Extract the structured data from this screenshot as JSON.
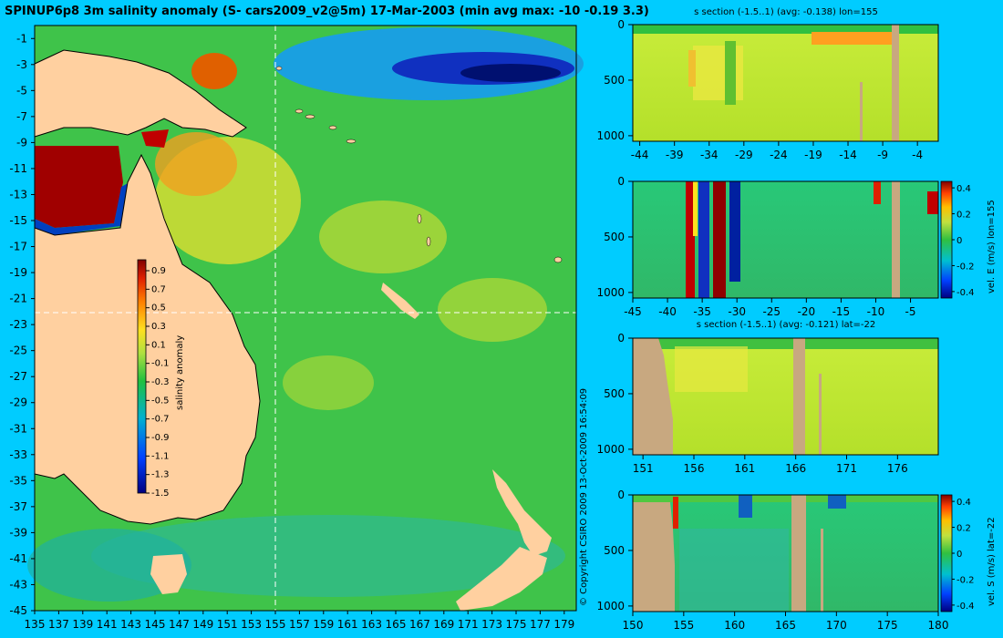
{
  "title": "SPINUP6p8 3m salinity anomaly (S- cars2009_v2@5m) 17-Mar-2003 (min avg max: -10 -0.19 3.3)",
  "copyright": "© Copyright CSIRO 2009   13-Oct-2009 16:54:09",
  "map": {
    "lon_ticks": [
      "135",
      "137",
      "139",
      "141",
      "143",
      "145",
      "147",
      "149",
      "151",
      "153",
      "155",
      "157",
      "159",
      "161",
      "163",
      "165",
      "167",
      "169",
      "171",
      "173",
      "175",
      "177",
      "179"
    ],
    "lat_ticks": [
      "-1",
      "-3",
      "-5",
      "-7",
      "-9",
      "-11",
      "-13",
      "-15",
      "-17",
      "-19",
      "-21",
      "-23",
      "-25",
      "-27",
      "-29",
      "-31",
      "-33",
      "-35",
      "-37",
      "-39",
      "-41",
      "-43",
      "-45"
    ],
    "colorbar_label": "salinity anomaly",
    "colorbar_ticks": [
      "0.9",
      "0.7",
      "0.5",
      "0.3",
      "0.1",
      "-0.1",
      "-0.3",
      "-0.5",
      "-0.7",
      "-0.9",
      "-1.1",
      "-1.3",
      "-1.5"
    ],
    "crosshair": {
      "lon": 155,
      "lat": -22
    }
  },
  "panels": [
    {
      "title": "s section (-1.5..1) (avg: -0.138) lon=155",
      "x_ticks": [
        "-44",
        "-39",
        "-34",
        "-29",
        "-24",
        "-19",
        "-14",
        "-9",
        "-4"
      ],
      "y_ticks": [
        "0",
        "500",
        "1000"
      ],
      "side_label": ""
    },
    {
      "title": "",
      "x_ticks": [
        "-45",
        "-40",
        "-35",
        "-30",
        "-25",
        "-20",
        "-15",
        "-10",
        "-5"
      ],
      "y_ticks": [
        "0",
        "500",
        "1000"
      ],
      "side_label": "vel. E (m/s) lon=155",
      "colorbar_ticks": [
        "0.4",
        "0.2",
        "0",
        "-0.2",
        "-0.4"
      ]
    },
    {
      "title": "s section (-1.5..1) (avg: -0.121) lat=-22",
      "x_ticks": [
        "151",
        "156",
        "161",
        "166",
        "171",
        "176"
      ],
      "y_ticks": [
        "0",
        "500",
        "1000"
      ],
      "side_label": ""
    },
    {
      "title": "",
      "x_ticks": [
        "150",
        "155",
        "160",
        "165",
        "170",
        "175",
        "180"
      ],
      "y_ticks": [
        "0",
        "500",
        "1000"
      ],
      "side_label": "vel. S (m/s) lat=-22",
      "colorbar_ticks": [
        "0.4",
        "0.2",
        "0",
        "-0.2",
        "-0.4"
      ]
    }
  ],
  "chart_data": [
    {
      "type": "heatmap",
      "title": "SPINUP6p8 3m salinity anomaly (S- cars2009_v2@5m) 17-Mar-2003 (min avg max: -10 -0.19 3.3)",
      "xlim": [
        135,
        180
      ],
      "ylim": [
        -45,
        0
      ],
      "zlim": [
        -1.5,
        1
      ],
      "min": -10,
      "avg": -0.19,
      "max": 3.3
    },
    {
      "type": "heatmap",
      "title": "s section (-1.5..1) (avg: -0.138) lon=155",
      "avg": -0.138,
      "zlim": [
        -1.5,
        1
      ],
      "xlim": [
        -45,
        -1
      ],
      "ylim": [
        1000,
        0
      ]
    },
    {
      "type": "heatmap",
      "ylabel": "vel. E (m/s) lon=155",
      "zlim": [
        -0.4,
        0.4
      ],
      "xlim": [
        -45,
        -1
      ],
      "ylim": [
        1000,
        0
      ]
    },
    {
      "type": "heatmap",
      "title": "s section (-1.5..1) (avg: -0.121) lat=-22",
      "avg": -0.121,
      "zlim": [
        -1.5,
        1
      ],
      "xlim": [
        150,
        180
      ],
      "ylim": [
        1000,
        0
      ]
    },
    {
      "type": "heatmap",
      "ylabel": "vel. S (m/s) lat=-22",
      "zlim": [
        -0.4,
        0.4
      ],
      "xlim": [
        150,
        180
      ],
      "ylim": [
        1000,
        0
      ]
    }
  ]
}
